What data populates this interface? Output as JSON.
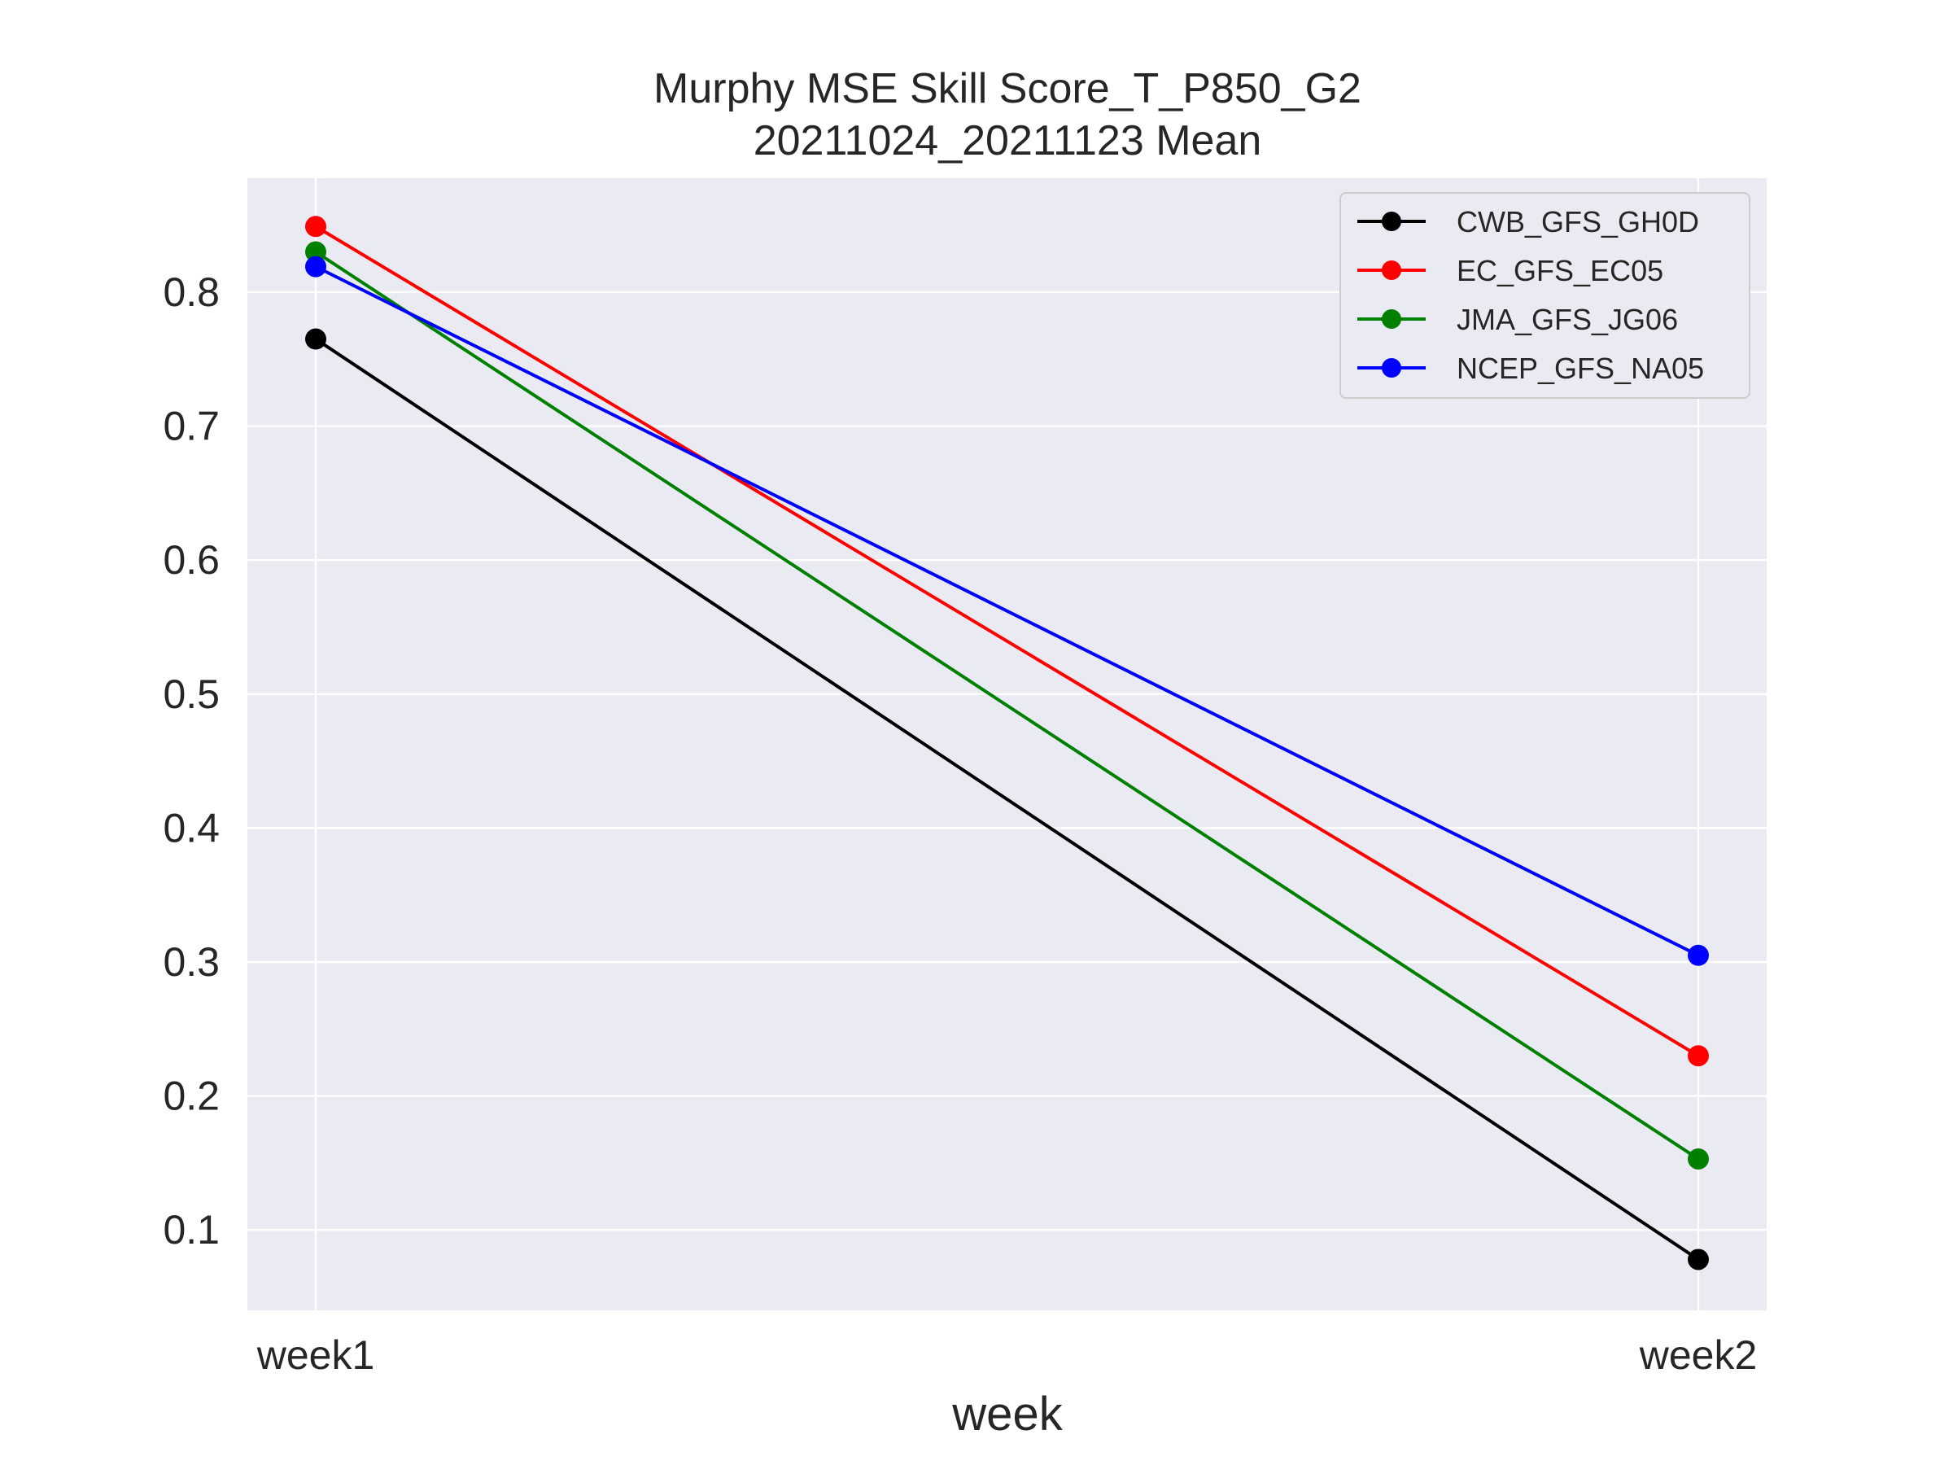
{
  "chart_data": {
    "type": "line",
    "title": "Murphy MSE Skill Score_T_P850_G2",
    "subtitle": "20211024_20211123 Mean",
    "xlabel": "week",
    "ylabel": "",
    "categories": [
      "week1",
      "week2"
    ],
    "ylim": [
      0.04,
      0.885
    ],
    "yticks": [
      0.1,
      0.2,
      0.3,
      0.4,
      0.5,
      0.6,
      0.7,
      0.8
    ],
    "ytick_labels": [
      "0.1",
      "0.2",
      "0.3",
      "0.4",
      "0.5",
      "0.6",
      "0.7",
      "0.8"
    ],
    "grid": true,
    "legend_position": "top-right",
    "series": [
      {
        "name": "CWB_GFS_GH0D",
        "color": "#000000",
        "values": [
          0.765,
          0.078
        ]
      },
      {
        "name": "EC_GFS_EC05",
        "color": "#ff0000",
        "values": [
          0.849,
          0.23
        ]
      },
      {
        "name": "JMA_GFS_JG06",
        "color": "#008000",
        "values": [
          0.83,
          0.153
        ]
      },
      {
        "name": "NCEP_GFS_NA05",
        "color": "#0000ff",
        "values": [
          0.819,
          0.305
        ]
      }
    ]
  }
}
